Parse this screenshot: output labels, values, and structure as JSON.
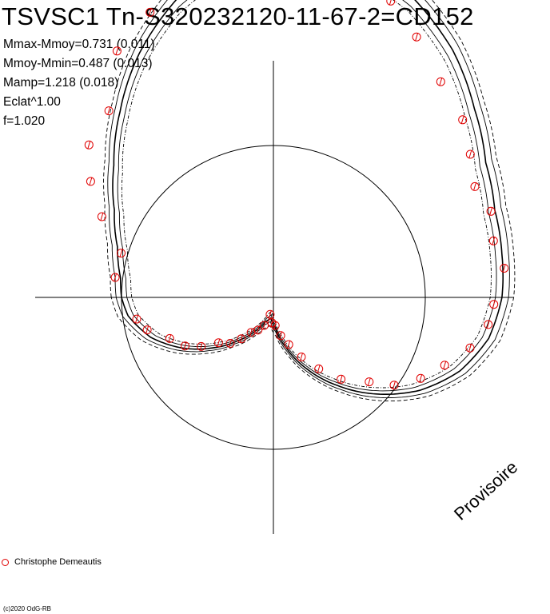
{
  "chart_data": {
    "type": "scatter",
    "title": "TSVSC1 Tn-S320232120-11-67-2=CD152",
    "stats": [
      "Mmax-Mmoy=0.731 (0.011)",
      "Mmoy-Mmin=0.487 (0.013)",
      "Mamp=1.218 (0.018)",
      "Eclat^1.00",
      "f=1.020"
    ],
    "legend": [
      {
        "name": "Christophe Demeautis",
        "marker": "open-circle",
        "color": "#e00000"
      }
    ],
    "credit": "(c)2020 OdG-RB",
    "watermark": "Provisoire",
    "colors": {
      "observations": "#e00000",
      "curves": "#000000",
      "axes": "#000000"
    },
    "mean_curve": [
      [
        0.0,
        0.0
      ],
      [
        0.02,
        0.008
      ],
      [
        0.05,
        0.045
      ],
      [
        0.08,
        0.11
      ],
      [
        0.11,
        0.205
      ],
      [
        0.14,
        0.33
      ],
      [
        0.17,
        0.47
      ],
      [
        0.2,
        0.6
      ],
      [
        0.23,
        0.695
      ],
      [
        0.26,
        0.73
      ],
      [
        0.29,
        0.718
      ],
      [
        0.32,
        0.662
      ],
      [
        0.35,
        0.57
      ],
      [
        0.38,
        0.46
      ],
      [
        0.41,
        0.37
      ],
      [
        0.44,
        0.32
      ],
      [
        0.47,
        0.3
      ],
      [
        0.5,
        0.285
      ],
      [
        0.53,
        0.25
      ],
      [
        0.56,
        0.18
      ],
      [
        0.59,
        0.08
      ],
      [
        0.62,
        -0.04
      ],
      [
        0.65,
        -0.16
      ],
      [
        0.68,
        -0.27
      ],
      [
        0.71,
        -0.37
      ],
      [
        0.74,
        -0.45
      ],
      [
        0.77,
        -0.487
      ],
      [
        0.8,
        -0.47
      ],
      [
        0.83,
        -0.42
      ],
      [
        0.86,
        -0.355
      ],
      [
        0.89,
        -0.27
      ],
      [
        0.92,
        -0.175
      ],
      [
        0.95,
        -0.085
      ],
      [
        0.98,
        -0.02
      ],
      [
        1.0,
        0.0
      ]
    ],
    "points": [
      [
        0.02,
        0.028
      ],
      [
        0.045,
        0.025
      ],
      [
        0.07,
        0.14
      ],
      [
        0.09,
        0.24
      ],
      [
        0.11,
        0.325
      ],
      [
        0.135,
        0.36
      ],
      [
        0.16,
        0.52
      ],
      [
        0.185,
        0.59
      ],
      [
        0.21,
        0.65
      ],
      [
        0.23,
        0.71
      ],
      [
        0.25,
        0.74
      ],
      [
        0.265,
        0.7
      ],
      [
        0.29,
        0.66
      ],
      [
        0.31,
        0.62
      ],
      [
        0.33,
        0.54
      ],
      [
        0.355,
        0.45
      ],
      [
        0.38,
        0.4
      ],
      [
        0.4,
        0.34
      ],
      [
        0.42,
        0.29
      ],
      [
        0.44,
        0.305
      ],
      [
        0.46,
        0.28
      ],
      [
        0.48,
        0.3
      ],
      [
        0.505,
        0.255
      ],
      [
        0.52,
        0.24
      ],
      [
        0.54,
        0.19
      ],
      [
        0.56,
        0.12
      ],
      [
        0.58,
        0.06
      ],
      [
        0.6,
        -0.01
      ],
      [
        0.615,
        -0.09
      ],
      [
        0.64,
        -0.17
      ],
      [
        0.66,
        -0.25
      ],
      [
        0.68,
        -0.32
      ],
      [
        0.7,
        -0.38
      ],
      [
        0.72,
        -0.42
      ],
      [
        0.74,
        -0.46
      ],
      [
        0.76,
        -0.47
      ],
      [
        0.78,
        -0.5
      ],
      [
        0.8,
        -0.455
      ],
      [
        0.82,
        -0.43
      ],
      [
        0.84,
        -0.41
      ],
      [
        0.855,
        -0.37
      ],
      [
        0.87,
        -0.33
      ],
      [
        0.89,
        -0.3
      ],
      [
        0.905,
        -0.24
      ],
      [
        0.92,
        -0.19
      ],
      [
        0.94,
        -0.15
      ],
      [
        0.96,
        -0.08
      ],
      [
        0.975,
        -0.05
      ]
    ]
  }
}
